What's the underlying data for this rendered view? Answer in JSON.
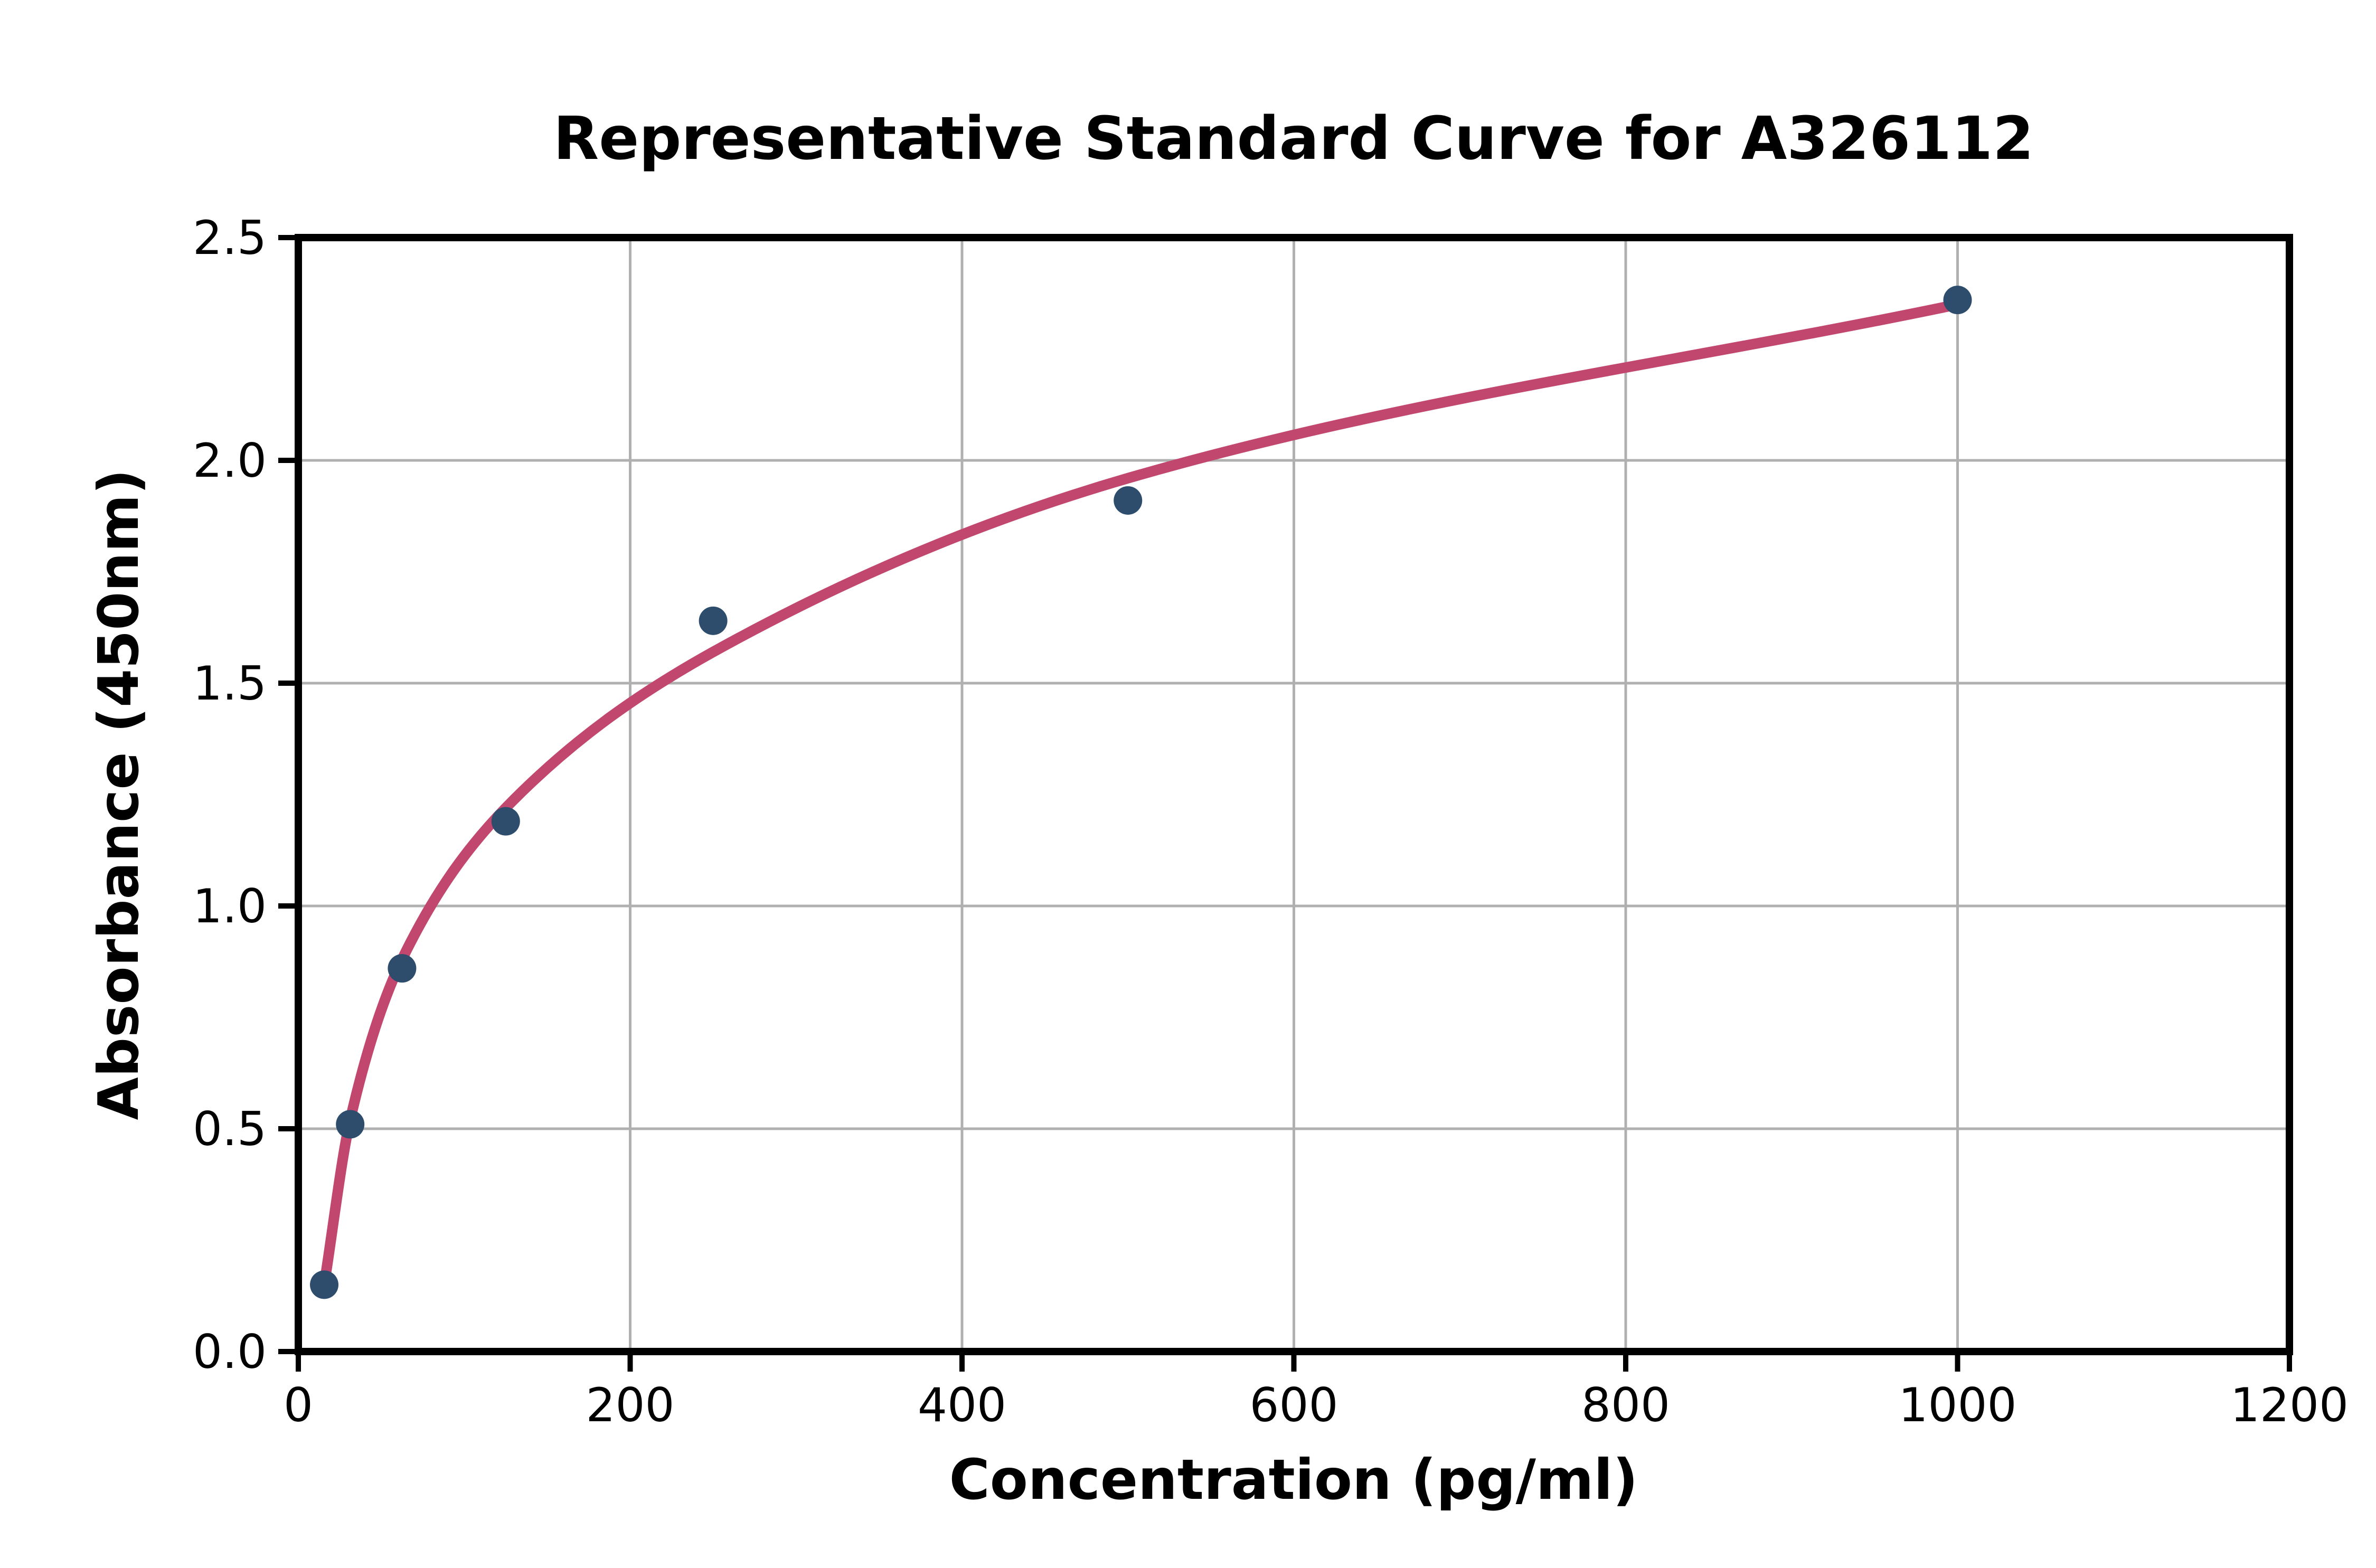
{
  "figure": {
    "background_color": "#ffffff"
  },
  "chart_data": {
    "type": "scatter",
    "title": "Representative Standard Curve for A326112",
    "xlabel": "Concentration (pg/ml)",
    "ylabel": "Absorbance (450nm)",
    "xlim": [
      0,
      1200
    ],
    "ylim": [
      0,
      2.5
    ],
    "x_ticks": [
      0,
      200,
      400,
      600,
      800,
      1000,
      1200
    ],
    "x_tick_labels": [
      "0",
      "200",
      "400",
      "600",
      "800",
      "1000",
      "1200"
    ],
    "y_ticks": [
      0,
      0.5,
      1.0,
      1.5,
      2.0,
      2.5
    ],
    "y_tick_labels": [
      "0.0",
      "0.5",
      "1.0",
      "1.5",
      "2.0",
      "2.5"
    ],
    "grid": true,
    "legend_position": "none",
    "series": [
      {
        "name": "standard-points",
        "type": "scatter",
        "x": [
          15.6,
          31.25,
          62.5,
          125,
          250,
          500,
          1000
        ],
        "y": [
          0.15,
          0.51,
          0.86,
          1.19,
          1.64,
          1.91,
          2.36
        ]
      },
      {
        "name": "fit-curve",
        "type": "smooth-line",
        "x": [
          15.6,
          31.25,
          62.5,
          125,
          250,
          500,
          1000
        ],
        "y": [
          0.15,
          0.52,
          0.88,
          1.22,
          1.57,
          1.96,
          2.35
        ]
      }
    ],
    "colors": {
      "curve": "#c2476e",
      "marker": "#2e4d6d",
      "grid": "#b0b0b0",
      "axis": "#000000",
      "text": "#000000",
      "background": "#ffffff"
    }
  }
}
